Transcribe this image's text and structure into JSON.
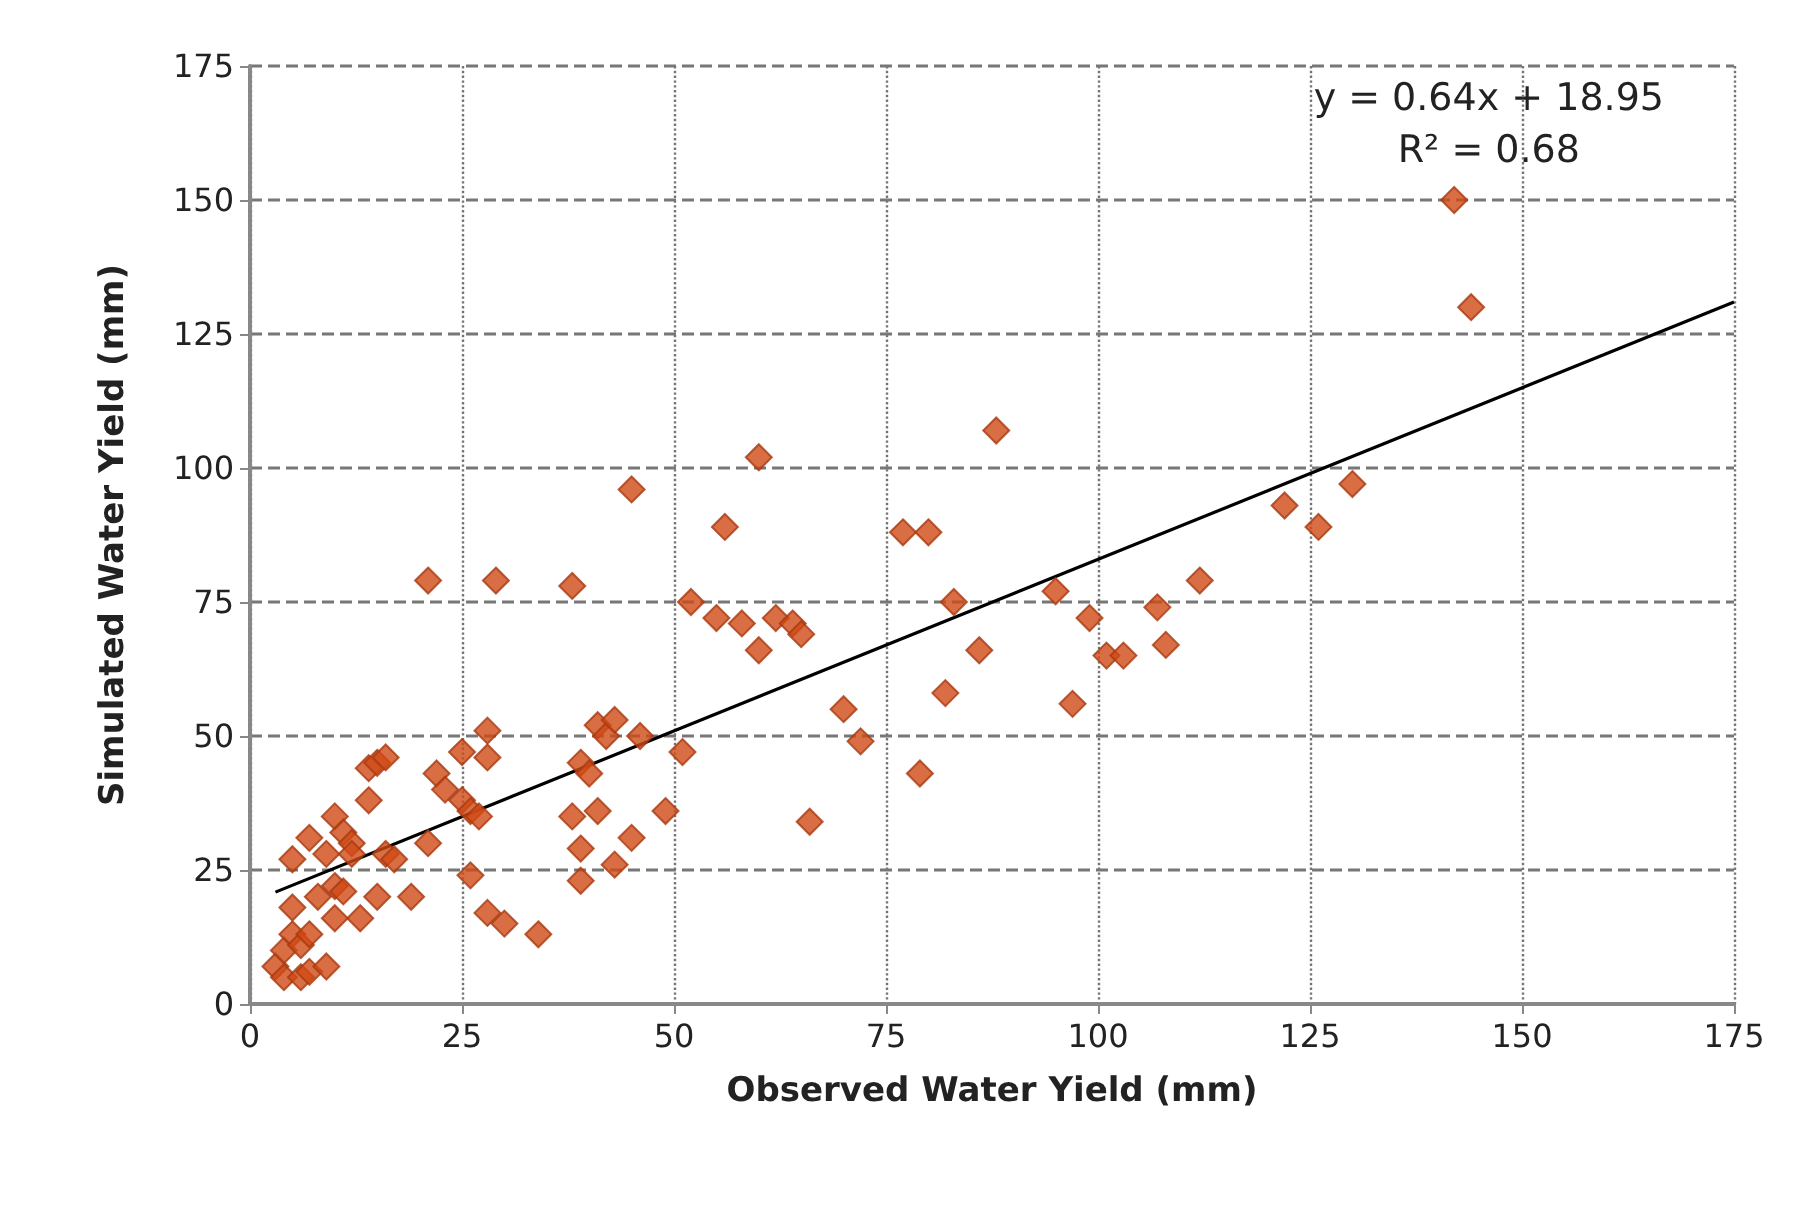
{
  "chart_data": {
    "type": "scatter",
    "xlabel": "Observed Water Yield (mm)",
    "ylabel": "Simulated Water Yield (mm)",
    "xlim": [
      0,
      175
    ],
    "ylim": [
      0,
      175
    ],
    "xticks": [
      0,
      25,
      50,
      75,
      100,
      125,
      150,
      175
    ],
    "yticks": [
      0,
      25,
      50,
      75,
      100,
      125,
      150,
      175
    ],
    "grid": true,
    "marker": "diamond",
    "annotations": [
      "y = 0.64x + 18.95",
      "R² = 0.68"
    ],
    "series": [
      {
        "color": "#d04a15",
        "x": [
          3,
          4,
          4,
          5,
          6,
          6,
          5,
          7,
          7,
          8,
          5,
          7,
          9,
          10,
          10,
          9,
          10,
          11,
          11,
          12,
          13,
          12,
          14,
          14,
          15,
          16,
          15,
          16,
          17,
          19,
          21,
          22,
          23,
          25,
          25,
          26,
          26,
          27,
          28,
          28,
          28,
          30,
          34,
          21,
          29,
          38,
          38,
          39,
          39,
          39,
          40,
          41,
          41,
          42,
          43,
          43,
          45,
          45,
          46,
          49,
          51,
          52,
          55,
          56,
          58,
          60,
          60,
          62,
          64,
          65,
          66,
          70,
          72,
          77,
          79,
          80,
          82,
          83,
          86,
          88,
          95,
          97,
          99,
          101,
          103,
          107,
          108,
          112,
          122,
          126,
          130,
          142,
          144
        ],
        "values": [
          7,
          5,
          10,
          13,
          5,
          11,
          18,
          6,
          13,
          20,
          27,
          31,
          7,
          16,
          22,
          28,
          35,
          21,
          32,
          30,
          16,
          28,
          38,
          44,
          45,
          46,
          20,
          28,
          27,
          20,
          30,
          43,
          40,
          38,
          47,
          24,
          36,
          35,
          51,
          46,
          17,
          15,
          13,
          79,
          79,
          78,
          35,
          23,
          29,
          45,
          43,
          36,
          52,
          50,
          53,
          26,
          31,
          96,
          50,
          36,
          47,
          75,
          72,
          89,
          71,
          66,
          102,
          72,
          71,
          69,
          34,
          55,
          49,
          88,
          43,
          88,
          58,
          75,
          66,
          107,
          77,
          56,
          72,
          65,
          65,
          74,
          67,
          79,
          93,
          89,
          97,
          150,
          130
        ]
      },
      {
        "type": "line",
        "color": "#000000",
        "marker": "none",
        "x": [
          3,
          175
        ],
        "values": [
          20.87,
          130.95
        ]
      }
    ]
  }
}
